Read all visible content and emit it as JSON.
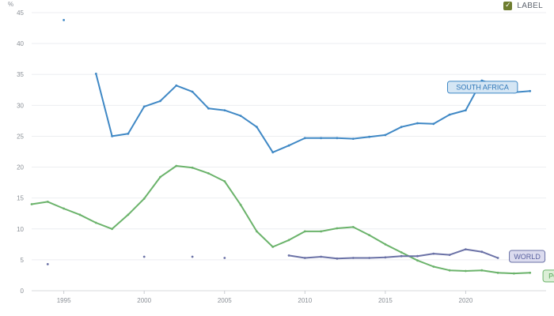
{
  "label_toggle": {
    "text": "LABEL",
    "checked": true,
    "check_glyph": "✓",
    "color": "#6e7d2f"
  },
  "chart_data": {
    "type": "line",
    "ylabel": "%",
    "xlim": [
      1993,
      2025
    ],
    "ylim": [
      0,
      45
    ],
    "x_ticks": [
      1995,
      2000,
      2005,
      2010,
      2015,
      2020
    ],
    "y_ticks": [
      0,
      5,
      10,
      15,
      20,
      25,
      30,
      35,
      40,
      45
    ],
    "grid": true,
    "series": [
      {
        "name": "SOUTH AFRICA",
        "color": "#3f88c5",
        "tag_fill": "#d5e6f4",
        "tag_text": "#2f77b8",
        "points": [
          [
            1995,
            43.8
          ],
          [
            1997,
            35.1
          ],
          [
            1998,
            25.0
          ],
          [
            1999,
            25.4
          ],
          [
            2000,
            29.8
          ],
          [
            2001,
            30.7
          ],
          [
            2002,
            33.2
          ],
          [
            2003,
            32.2
          ],
          [
            2004,
            29.5
          ],
          [
            2005,
            29.2
          ],
          [
            2006,
            28.3
          ],
          [
            2007,
            26.5
          ],
          [
            2008,
            22.4
          ],
          [
            2009,
            23.5
          ],
          [
            2010,
            24.7
          ],
          [
            2011,
            24.7
          ],
          [
            2012,
            24.7
          ],
          [
            2013,
            24.6
          ],
          [
            2014,
            24.9
          ],
          [
            2015,
            25.2
          ],
          [
            2016,
            26.5
          ],
          [
            2017,
            27.1
          ],
          [
            2018,
            27.0
          ],
          [
            2019,
            28.5
          ],
          [
            2020,
            29.2
          ],
          [
            2021,
            34.0
          ],
          [
            2022,
            33.2
          ],
          [
            2023,
            32.1
          ],
          [
            2024,
            32.3
          ]
        ]
      },
      {
        "name": "POLAND",
        "color": "#6bb36b",
        "tag_fill": "#dcefd7",
        "tag_text": "#52a352",
        "points": [
          [
            1993,
            14.0
          ],
          [
            1994,
            14.4
          ],
          [
            1995,
            13.3
          ],
          [
            1996,
            12.3
          ],
          [
            1997,
            11.0
          ],
          [
            1998,
            10.0
          ],
          [
            1999,
            12.3
          ],
          [
            2000,
            14.9
          ],
          [
            2001,
            18.4
          ],
          [
            2002,
            20.2
          ],
          [
            2003,
            19.9
          ],
          [
            2004,
            19.0
          ],
          [
            2005,
            17.7
          ],
          [
            2006,
            13.9
          ],
          [
            2007,
            9.6
          ],
          [
            2008,
            7.1
          ],
          [
            2009,
            8.2
          ],
          [
            2010,
            9.6
          ],
          [
            2011,
            9.6
          ],
          [
            2012,
            10.1
          ],
          [
            2013,
            10.3
          ],
          [
            2014,
            9.0
          ],
          [
            2015,
            7.5
          ],
          [
            2016,
            6.2
          ],
          [
            2017,
            4.9
          ],
          [
            2018,
            3.9
          ],
          [
            2019,
            3.3
          ],
          [
            2020,
            3.2
          ],
          [
            2021,
            3.3
          ],
          [
            2022,
            2.9
          ],
          [
            2023,
            2.8
          ],
          [
            2024,
            2.9
          ]
        ]
      },
      {
        "name": "WORLD",
        "color": "#6a71a6",
        "tag_fill": "#dcdcef",
        "tag_text": "#5a62a0",
        "points": [
          [
            1994,
            4.3
          ],
          [
            2000,
            5.5
          ],
          [
            2003,
            5.5
          ],
          [
            2005,
            5.3
          ],
          [
            2009,
            5.7
          ],
          [
            2010,
            5.3
          ],
          [
            2011,
            5.5
          ],
          [
            2012,
            5.2
          ],
          [
            2013,
            5.3
          ],
          [
            2014,
            5.3
          ],
          [
            2015,
            5.4
          ],
          [
            2016,
            5.6
          ],
          [
            2017,
            5.6
          ],
          [
            2018,
            6.0
          ],
          [
            2019,
            5.8
          ],
          [
            2020,
            6.7
          ],
          [
            2021,
            6.3
          ],
          [
            2022,
            5.3
          ]
        ]
      }
    ]
  }
}
